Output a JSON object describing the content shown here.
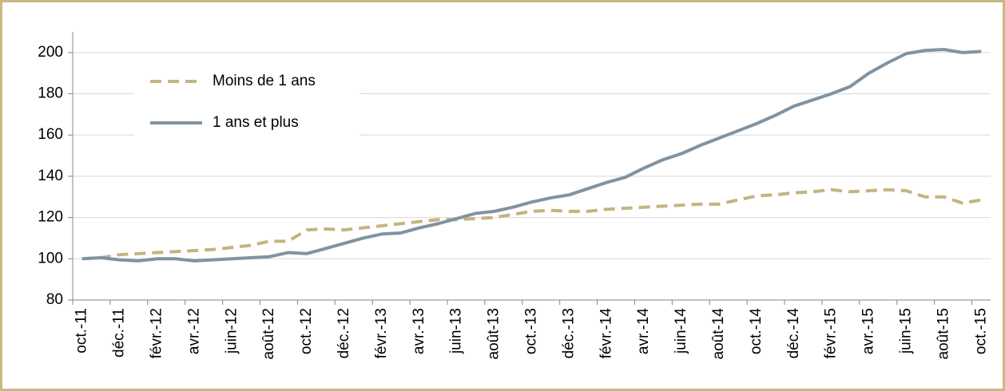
{
  "chart_data": {
    "type": "line",
    "categories": [
      "oct.-11",
      null,
      "déc.-11",
      null,
      "févr.-12",
      null,
      "avr.-12",
      null,
      "juin-12",
      null,
      "août-12",
      null,
      "oct.-12",
      null,
      "déc.-12",
      null,
      "févr.-13",
      null,
      "avr.-13",
      null,
      "juin-13",
      null,
      "août-13",
      null,
      "oct.-13",
      null,
      "déc.-13",
      null,
      "févr.-14",
      null,
      "avr.-14",
      null,
      "juin-14",
      null,
      "août-14",
      null,
      "oct.-14",
      null,
      "déc.-14",
      null,
      "févr.-15",
      null,
      "avr.-15",
      null,
      "juin-15",
      null,
      "août-15",
      null,
      "oct.-15"
    ],
    "series": [
      {
        "name": "Moins de 1 ans",
        "color": "#c4b483",
        "dashed": true,
        "values": [
          100,
          100.5,
          102,
          102.5,
          103,
          103.5,
          104,
          104.5,
          105.5,
          106.5,
          108.5,
          108.5,
          114,
          114.5,
          114,
          115,
          116,
          117,
          118,
          119,
          119,
          119.5,
          120,
          121.5,
          123,
          123.5,
          123,
          123,
          124,
          124.5,
          125,
          125.5,
          126,
          126.5,
          126.5,
          128.5,
          130.5,
          131,
          132,
          132.5,
          133.5,
          132.5,
          133,
          133.5,
          133,
          130,
          130,
          127,
          128.5
        ]
      },
      {
        "name": "1 ans et plus",
        "color": "#7f93a3",
        "dashed": false,
        "values": [
          100,
          100.5,
          99.5,
          99,
          100,
          100,
          99,
          99.5,
          100,
          100.5,
          101,
          103,
          102.5,
          105,
          107.5,
          110,
          112,
          112.5,
          115,
          117,
          119.5,
          122,
          123,
          125,
          127.5,
          129.5,
          131,
          134,
          137,
          139.5,
          144,
          148,
          151,
          155,
          158.5,
          162,
          165.5,
          169.5,
          174,
          177,
          180,
          183.5,
          190,
          195,
          199.5,
          201,
          201.5,
          200,
          200.5
        ]
      }
    ],
    "ylim": [
      80,
      210
    ],
    "yticks": [
      80,
      100,
      120,
      140,
      160,
      180,
      200
    ],
    "grid": true,
    "legend": "upper left"
  }
}
